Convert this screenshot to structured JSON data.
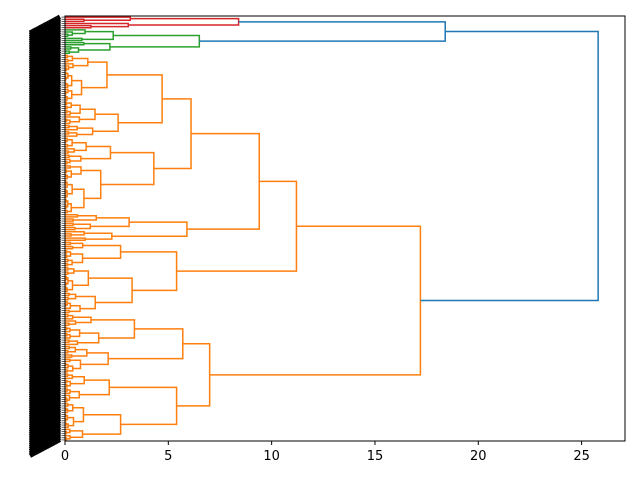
{
  "chart_data": {
    "type": "dendrogram",
    "orientation": "horizontal",
    "title": "",
    "xlabel": "",
    "ylabel": "",
    "xlim": [
      0,
      27.1
    ],
    "xticks": [
      0,
      5,
      10,
      15,
      20,
      25
    ],
    "xtick_labels": [
      "0",
      "5",
      "10",
      "15",
      "20",
      "25"
    ],
    "leaf_count": 200,
    "colors": {
      "above_threshold": "#1f77b4",
      "cluster_red": "#d62728",
      "cluster_green": "#2ca02c",
      "cluster_orange": "#ff7f0e",
      "axis": "#000000"
    },
    "clusters": [
      {
        "name": "red",
        "color": "#d62728",
        "leaves": 6,
        "merge_height": 8.4
      },
      {
        "name": "green",
        "color": "#2ca02c",
        "leaves": 12,
        "merge_height": 6.5
      },
      {
        "name": "orange",
        "color": "#ff7f0e",
        "leaves": 182,
        "merge_height": 17.2
      }
    ],
    "top_links": [
      {
        "children": [
          "red",
          "green"
        ],
        "height": 18.4
      },
      {
        "children": [
          "red+green",
          "orange"
        ],
        "height": 25.8
      }
    ],
    "orange_subclusters": [
      {
        "name": "o1",
        "leaves": 39,
        "height": 4.7
      },
      {
        "name": "o2",
        "leaves": 36,
        "height": 4.3
      },
      {
        "name": "o3",
        "leaves": 13,
        "height": 5.9
      },
      {
        "name": "o4",
        "leaves": 34,
        "height": 5.4
      },
      {
        "name": "o5",
        "leaves": 28,
        "height": 5.7
      },
      {
        "name": "o6",
        "leaves": 32,
        "height": 5.4
      }
    ],
    "orange_internal_links": [
      {
        "children": [
          "o1",
          "o2"
        ],
        "height": 6.1
      },
      {
        "children": [
          "o1o2",
          "o3"
        ],
        "height": 9.4
      },
      {
        "children": [
          "o1o2o3",
          "o4"
        ],
        "height": 11.2
      },
      {
        "children": [
          "o5",
          "o6"
        ],
        "height": 7.0
      },
      {
        "children": [
          "o1o2o3o4",
          "o5o6"
        ],
        "height": 17.2
      }
    ]
  }
}
